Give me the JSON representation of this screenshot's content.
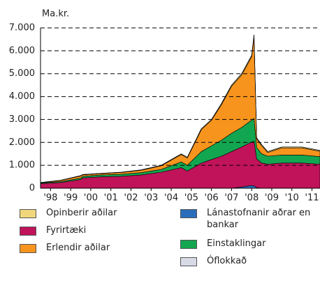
{
  "chart_data": {
    "type": "stacked_area",
    "y_label": "Ma.kr.",
    "x": [
      1998,
      1999,
      2000,
      2000.1,
      2001,
      2002,
      2003,
      2004,
      2005,
      2005.3,
      2006,
      2006.5,
      2007,
      2007.5,
      2008,
      2008.5,
      2008.62,
      2008.75,
      2009,
      2009.3,
      2010,
      2011,
      2011.9
    ],
    "series": [
      {
        "name": "Lánastofnanir aðrar en bankar",
        "color": "#2a6ebb",
        "values": [
          0,
          0,
          0,
          0,
          0,
          0,
          0,
          0,
          0,
          0,
          0,
          0,
          0,
          0,
          50,
          120,
          100,
          30,
          0,
          0,
          0,
          0,
          0
        ]
      },
      {
        "name": "Fyrirtæki",
        "color": "#c0135a",
        "values": [
          200,
          250,
          380,
          450,
          500,
          520,
          580,
          700,
          900,
          750,
          1100,
          1250,
          1400,
          1600,
          1750,
          1900,
          1950,
          1250,
          1100,
          1050,
          1100,
          1100,
          1050
        ]
      },
      {
        "name": "Einstaklingar",
        "color": "#12a650",
        "values": [
          30,
          40,
          60,
          70,
          80,
          90,
          100,
          120,
          250,
          250,
          500,
          600,
          700,
          800,
          850,
          950,
          1000,
          500,
          400,
          350,
          350,
          350,
          330
        ]
      },
      {
        "name": "Erlendir aðilar",
        "color": "#f7941d",
        "values": [
          10,
          50,
          95,
          65,
          55,
          75,
          100,
          160,
          320,
          320,
          960,
          1110,
          1550,
          2050,
          2290,
          2770,
          3590,
          370,
          360,
          160,
          310,
          310,
          230
        ]
      },
      {
        "name": "Opinberir aðilar",
        "color": "#f0d77b",
        "values": [
          10,
          10,
          15,
          15,
          15,
          15,
          20,
          20,
          30,
          30,
          40,
          40,
          50,
          50,
          60,
          60,
          60,
          50,
          40,
          40,
          40,
          40,
          40
        ]
      },
      {
        "name": "Óflokkað",
        "color": "#d8dbe6",
        "values": [
          0,
          0,
          0,
          0,
          0,
          0,
          0,
          0,
          0,
          0,
          0,
          0,
          0,
          0,
          0,
          0,
          0,
          0,
          0,
          0,
          0,
          0,
          0
        ]
      }
    ],
    "legend_order": [
      4,
      1,
      3,
      0,
      2,
      5
    ],
    "xlim": [
      1998,
      2011.9
    ],
    "xticks": [
      {
        "value": 1998.5,
        "label": "'98"
      },
      {
        "value": 1999.5,
        "label": "'99"
      },
      {
        "value": 2000.5,
        "label": "'00"
      },
      {
        "value": 2001.5,
        "label": "'01"
      },
      {
        "value": 2002.5,
        "label": "'02"
      },
      {
        "value": 2003.5,
        "label": "'03"
      },
      {
        "value": 2004.5,
        "label": "'04"
      },
      {
        "value": 2005.5,
        "label": "'05"
      },
      {
        "value": 2006.5,
        "label": "'06"
      },
      {
        "value": 2007.5,
        "label": "'07"
      },
      {
        "value": 2008.5,
        "label": "'08"
      },
      {
        "value": 2009.5,
        "label": "'09"
      },
      {
        "value": 2010.5,
        "label": "'10"
      },
      {
        "value": 2011.5,
        "label": "'11"
      }
    ],
    "ylim": [
      0,
      7000
    ],
    "yticks": [
      0,
      {
        "value": 1000,
        "label": "1.000"
      },
      {
        "value": 2000,
        "label": "2.000"
      },
      {
        "value": 3000,
        "label": "3.000"
      },
      {
        "value": 4000,
        "label": "4.000"
      },
      {
        "value": 5000,
        "label": "5.000"
      },
      {
        "value": 6000,
        "label": "6.000"
      },
      {
        "value": 7000,
        "label": "7.000"
      }
    ],
    "grid": true
  }
}
